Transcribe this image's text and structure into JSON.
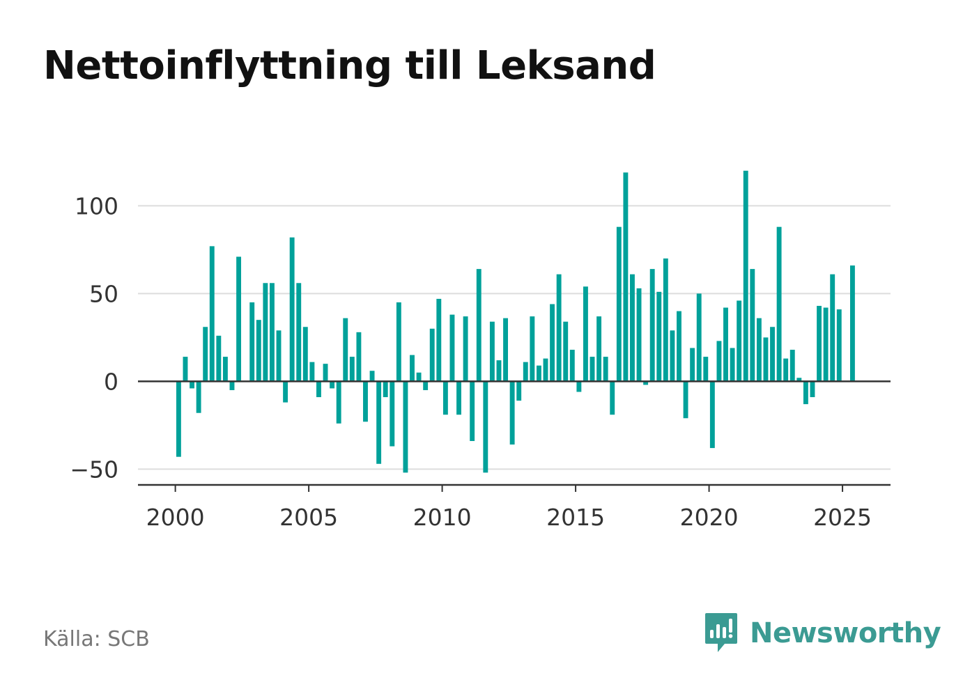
{
  "title": "Nettoinflyttning till Leksand",
  "source": "Källa: SCB",
  "brand": {
    "name": "Newsworthy",
    "icon": "newsworthy-logo-icon",
    "color": "#3b9b93"
  },
  "chart_data": {
    "type": "bar",
    "title": "Nettoinflyttning till Leksand",
    "xlabel": "",
    "ylabel": "",
    "color": "#00a19a",
    "ylim": [
      -59,
      122
    ],
    "xlim": [
      1998.6,
      2026.8
    ],
    "grid": true,
    "y_ticks": [
      {
        "value": 100,
        "label": "100"
      },
      {
        "value": 50,
        "label": "50"
      },
      {
        "value": 0,
        "label": "0"
      },
      {
        "value": -50,
        "label": "−50"
      }
    ],
    "x_ticks": [
      {
        "value": 2000,
        "label": "2000"
      },
      {
        "value": 2005,
        "label": "2005"
      },
      {
        "value": 2010,
        "label": "2010"
      },
      {
        "value": 2015,
        "label": "2015"
      },
      {
        "value": 2020,
        "label": "2020"
      },
      {
        "value": 2025,
        "label": "2025"
      }
    ],
    "period_start": 2000,
    "period_length": 0.25,
    "values": [
      -43,
      14,
      -4,
      -18,
      31,
      77,
      26,
      14,
      -5,
      71,
      0,
      45,
      35,
      56,
      56,
      29,
      -12,
      82,
      56,
      31,
      11,
      -9,
      10,
      -4,
      -24,
      36,
      14,
      28,
      -23,
      6,
      -47,
      -9,
      -37,
      45,
      -52,
      15,
      5,
      -5,
      30,
      47,
      -19,
      38,
      -19,
      37,
      -34,
      64,
      -52,
      34,
      12,
      36,
      -36,
      -11,
      11,
      37,
      9,
      13,
      44,
      61,
      34,
      18,
      -6,
      54,
      14,
      37,
      14,
      -19,
      88,
      119,
      61,
      53,
      -2,
      64,
      51,
      70,
      29,
      40,
      -21,
      19,
      50,
      14,
      -38,
      23,
      42,
      19,
      46,
      120,
      64,
      36,
      25,
      31,
      88,
      13,
      18,
      2,
      -13,
      -9,
      43,
      42,
      61,
      41,
      0,
      66
    ]
  }
}
